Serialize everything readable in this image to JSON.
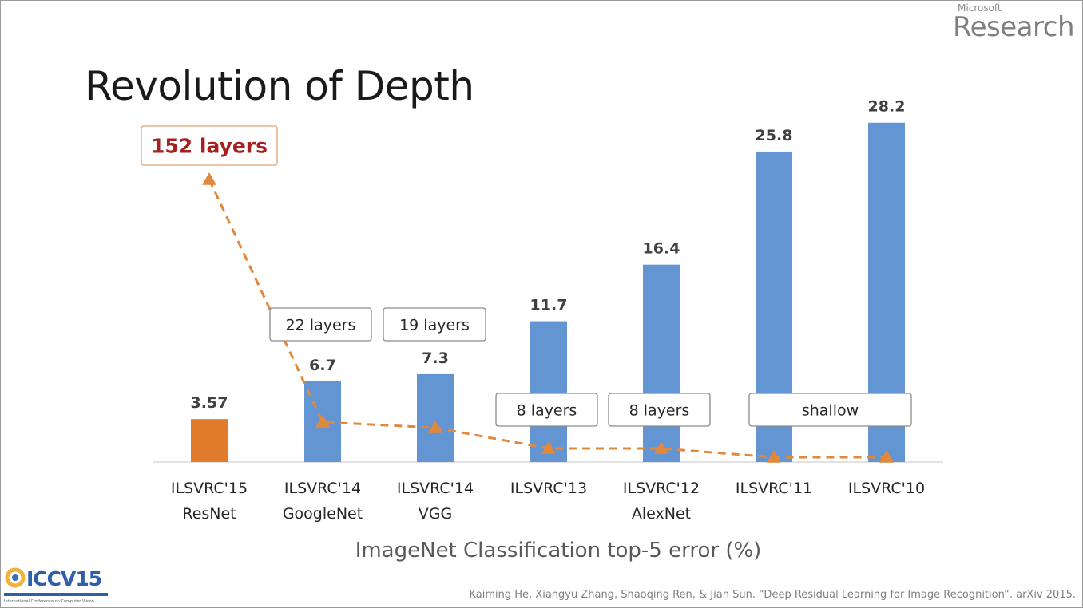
{
  "branding": {
    "microsoft": "Microsoft",
    "research": "Research",
    "conference_logo": "ICCV15",
    "conference_logo_caption": "International Conference on Computer Vision"
  },
  "slide_title": "Revolution of Depth",
  "citation": "Kaiming He, Xiangyu Zhang, Shaoqing Ren, & Jian Sun. “Deep Residual Learning for Image Recognition”. arXiv 2015.",
  "chart_data": {
    "type": "bar",
    "title": "Revolution of Depth",
    "xlabel": "ImageNet Classification top-5 error (%)",
    "ylabel": "",
    "ylim": [
      0,
      30
    ],
    "grid": false,
    "categories": [
      [
        "ILSVRC'15",
        "ResNet"
      ],
      [
        "ILSVRC'14",
        "GoogleNet"
      ],
      [
        "ILSVRC'14",
        "VGG"
      ],
      [
        "ILSVRC'13"
      ],
      [
        "ILSVRC'12",
        "AlexNet"
      ],
      [
        "ILSVRC'11"
      ],
      [
        "ILSVRC'10"
      ]
    ],
    "values": [
      3.57,
      6.7,
      7.3,
      11.7,
      16.4,
      25.8,
      28.2
    ],
    "value_labels": [
      "3.57",
      "6.7",
      "7.3",
      "11.7",
      "16.4",
      "25.8",
      "28.2"
    ],
    "colors": [
      "#e07b2c",
      "#6495d3",
      "#6495d3",
      "#6495d3",
      "#6495d3",
      "#6495d3",
      "#6495d3"
    ],
    "depth_callouts": [
      {
        "text": "152 layers",
        "highlight": true,
        "bars": [
          0
        ]
      },
      {
        "text": "22 layers",
        "highlight": false,
        "bars": [
          1
        ]
      },
      {
        "text": "19 layers",
        "highlight": false,
        "bars": [
          2
        ]
      },
      {
        "text": "8 layers",
        "highlight": false,
        "bars": [
          3
        ]
      },
      {
        "text": "8 layers",
        "highlight": false,
        "bars": [
          4
        ]
      },
      {
        "text": "shallow",
        "highlight": false,
        "bars": [
          5,
          6
        ]
      }
    ],
    "depth_trend": {
      "style": "dashed",
      "color": "#e0893c",
      "marker": "triangle"
    },
    "accent_color": "#a5201f"
  }
}
